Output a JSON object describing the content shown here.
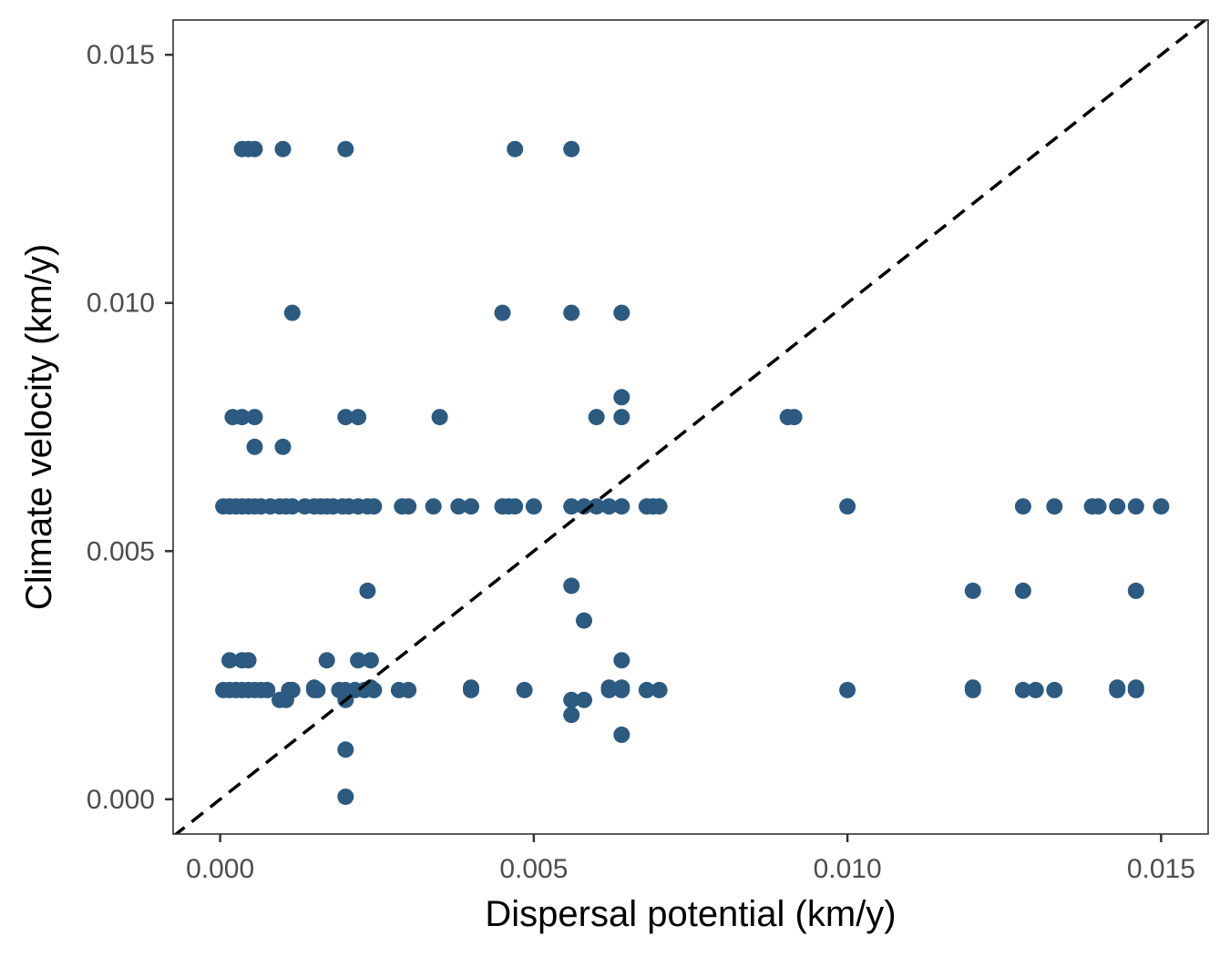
{
  "chart_data": {
    "type": "scatter",
    "title": "",
    "xlabel": "Dispersal potential (km/y)",
    "ylabel": "Climate velocity (km/y)",
    "xlim": [
      -0.00075,
      0.01575
    ],
    "ylim": [
      -0.0007,
      0.0157
    ],
    "xticks": [
      0.0,
      0.005,
      0.01,
      0.015
    ],
    "xtick_labels": [
      "0.000",
      "0.005",
      "0.010",
      "0.015"
    ],
    "yticks": [
      0.0,
      0.005,
      0.01,
      0.015
    ],
    "ytick_labels": [
      "0.000",
      "0.005",
      "0.010",
      "0.015"
    ],
    "grid": false,
    "point_color": "#2c5a80",
    "reference_line": {
      "style": "dashed",
      "color": "#000000",
      "slope": 1,
      "intercept": 0
    },
    "points": [
      {
        "x": 0.00035,
        "y": 0.0131
      },
      {
        "x": 0.00045,
        "y": 0.0131
      },
      {
        "x": 0.00055,
        "y": 0.0131
      },
      {
        "x": 0.001,
        "y": 0.0131
      },
      {
        "x": 0.002,
        "y": 0.0131
      },
      {
        "x": 0.0047,
        "y": 0.0131
      },
      {
        "x": 0.0056,
        "y": 0.0131
      },
      {
        "x": 0.00115,
        "y": 0.0098
      },
      {
        "x": 0.0045,
        "y": 0.0098
      },
      {
        "x": 0.0056,
        "y": 0.0098
      },
      {
        "x": 0.0064,
        "y": 0.0098
      },
      {
        "x": 0.0064,
        "y": 0.0081
      },
      {
        "x": 0.0002,
        "y": 0.0077
      },
      {
        "x": 0.00035,
        "y": 0.0077
      },
      {
        "x": 0.00055,
        "y": 0.0077
      },
      {
        "x": 0.002,
        "y": 0.0077
      },
      {
        "x": 0.0022,
        "y": 0.0077
      },
      {
        "x": 0.0035,
        "y": 0.0077
      },
      {
        "x": 0.006,
        "y": 0.0077
      },
      {
        "x": 0.0064,
        "y": 0.0077
      },
      {
        "x": 0.00905,
        "y": 0.0077
      },
      {
        "x": 0.00915,
        "y": 0.0077
      },
      {
        "x": 0.00055,
        "y": 0.0071
      },
      {
        "x": 0.001,
        "y": 0.0071
      },
      {
        "x": 5e-05,
        "y": 0.0059
      },
      {
        "x": 0.00015,
        "y": 0.0059
      },
      {
        "x": 0.00025,
        "y": 0.0059
      },
      {
        "x": 0.00035,
        "y": 0.0059
      },
      {
        "x": 0.00045,
        "y": 0.0059
      },
      {
        "x": 0.00055,
        "y": 0.0059
      },
      {
        "x": 0.00065,
        "y": 0.0059
      },
      {
        "x": 0.0008,
        "y": 0.0059
      },
      {
        "x": 0.00095,
        "y": 0.0059
      },
      {
        "x": 0.00105,
        "y": 0.0059
      },
      {
        "x": 0.00115,
        "y": 0.0059
      },
      {
        "x": 0.00135,
        "y": 0.0059
      },
      {
        "x": 0.0015,
        "y": 0.0059
      },
      {
        "x": 0.0016,
        "y": 0.0059
      },
      {
        "x": 0.0017,
        "y": 0.0059
      },
      {
        "x": 0.0018,
        "y": 0.0059
      },
      {
        "x": 0.00195,
        "y": 0.0059
      },
      {
        "x": 0.00205,
        "y": 0.0059
      },
      {
        "x": 0.0022,
        "y": 0.0059
      },
      {
        "x": 0.00235,
        "y": 0.0059
      },
      {
        "x": 0.00245,
        "y": 0.0059
      },
      {
        "x": 0.0029,
        "y": 0.0059
      },
      {
        "x": 0.003,
        "y": 0.0059
      },
      {
        "x": 0.0034,
        "y": 0.0059
      },
      {
        "x": 0.0038,
        "y": 0.0059
      },
      {
        "x": 0.004,
        "y": 0.0059
      },
      {
        "x": 0.0045,
        "y": 0.0059
      },
      {
        "x": 0.0046,
        "y": 0.0059
      },
      {
        "x": 0.0047,
        "y": 0.0059
      },
      {
        "x": 0.005,
        "y": 0.0059
      },
      {
        "x": 0.0056,
        "y": 0.0059
      },
      {
        "x": 0.0058,
        "y": 0.0059
      },
      {
        "x": 0.006,
        "y": 0.0059
      },
      {
        "x": 0.0062,
        "y": 0.0059
      },
      {
        "x": 0.0064,
        "y": 0.0059
      },
      {
        "x": 0.0068,
        "y": 0.0059
      },
      {
        "x": 0.0069,
        "y": 0.0059
      },
      {
        "x": 0.007,
        "y": 0.0059
      },
      {
        "x": 0.01,
        "y": 0.0059
      },
      {
        "x": 0.0128,
        "y": 0.0059
      },
      {
        "x": 0.0133,
        "y": 0.0059
      },
      {
        "x": 0.0139,
        "y": 0.0059
      },
      {
        "x": 0.014,
        "y": 0.0059
      },
      {
        "x": 0.0143,
        "y": 0.0059
      },
      {
        "x": 0.0146,
        "y": 0.0059
      },
      {
        "x": 0.015,
        "y": 0.0059
      },
      {
        "x": 0.0056,
        "y": 0.0043
      },
      {
        "x": 0.00235,
        "y": 0.0042
      },
      {
        "x": 0.012,
        "y": 0.0042
      },
      {
        "x": 0.0128,
        "y": 0.0042
      },
      {
        "x": 0.0146,
        "y": 0.0042
      },
      {
        "x": 0.0058,
        "y": 0.0036
      },
      {
        "x": 0.00015,
        "y": 0.0028
      },
      {
        "x": 0.00035,
        "y": 0.0028
      },
      {
        "x": 0.00045,
        "y": 0.0028
      },
      {
        "x": 0.0017,
        "y": 0.0028
      },
      {
        "x": 0.0022,
        "y": 0.0028
      },
      {
        "x": 0.0024,
        "y": 0.0028
      },
      {
        "x": 0.0064,
        "y": 0.0028
      },
      {
        "x": 5e-05,
        "y": 0.0022
      },
      {
        "x": 0.00015,
        "y": 0.0022
      },
      {
        "x": 0.00025,
        "y": 0.0022
      },
      {
        "x": 0.00035,
        "y": 0.0022
      },
      {
        "x": 0.00045,
        "y": 0.0022
      },
      {
        "x": 0.00055,
        "y": 0.0022
      },
      {
        "x": 0.00065,
        "y": 0.0022
      },
      {
        "x": 0.00075,
        "y": 0.0022
      },
      {
        "x": 0.0011,
        "y": 0.0022
      },
      {
        "x": 0.00115,
        "y": 0.0022
      },
      {
        "x": 0.0015,
        "y": 0.0022
      },
      {
        "x": 0.00155,
        "y": 0.0022
      },
      {
        "x": 0.0019,
        "y": 0.0022
      },
      {
        "x": 0.002,
        "y": 0.0022
      },
      {
        "x": 0.00215,
        "y": 0.0022
      },
      {
        "x": 0.0023,
        "y": 0.0022
      },
      {
        "x": 0.00245,
        "y": 0.0022
      },
      {
        "x": 0.00285,
        "y": 0.0022
      },
      {
        "x": 0.003,
        "y": 0.0022
      },
      {
        "x": 0.004,
        "y": 0.0022
      },
      {
        "x": 0.00485,
        "y": 0.0022
      },
      {
        "x": 0.0062,
        "y": 0.0022
      },
      {
        "x": 0.0064,
        "y": 0.0022
      },
      {
        "x": 0.0068,
        "y": 0.0022
      },
      {
        "x": 0.007,
        "y": 0.0022
      },
      {
        "x": 0.01,
        "y": 0.0022
      },
      {
        "x": 0.012,
        "y": 0.0022
      },
      {
        "x": 0.0128,
        "y": 0.0022
      },
      {
        "x": 0.013,
        "y": 0.0022
      },
      {
        "x": 0.0133,
        "y": 0.0022
      },
      {
        "x": 0.0143,
        "y": 0.0022
      },
      {
        "x": 0.0146,
        "y": 0.0022
      },
      {
        "x": 0.0015,
        "y": 0.00225
      },
      {
        "x": 0.0024,
        "y": 0.00225
      },
      {
        "x": 0.004,
        "y": 0.00225
      },
      {
        "x": 0.0062,
        "y": 0.00225
      },
      {
        "x": 0.0064,
        "y": 0.00225
      },
      {
        "x": 0.012,
        "y": 0.00225
      },
      {
        "x": 0.0143,
        "y": 0.00225
      },
      {
        "x": 0.0146,
        "y": 0.00225
      },
      {
        "x": 0.00095,
        "y": 0.002
      },
      {
        "x": 0.00105,
        "y": 0.002
      },
      {
        "x": 0.002,
        "y": 0.002
      },
      {
        "x": 0.0056,
        "y": 0.002
      },
      {
        "x": 0.0058,
        "y": 0.002
      },
      {
        "x": 0.0056,
        "y": 0.0017
      },
      {
        "x": 0.0064,
        "y": 0.0013
      },
      {
        "x": 0.002,
        "y": 0.001
      },
      {
        "x": 0.002,
        "y": 5e-05
      }
    ]
  }
}
